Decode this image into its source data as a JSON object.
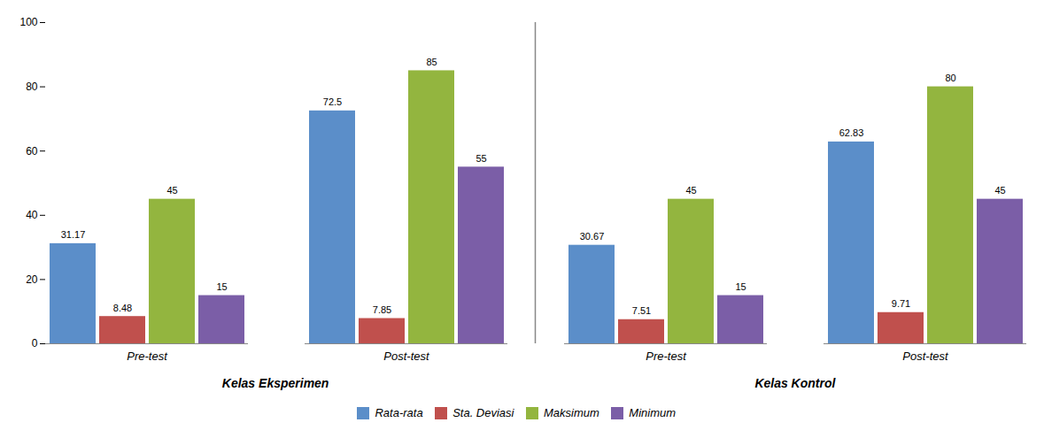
{
  "chart_data": {
    "type": "bar",
    "categories": [
      "Pre-test",
      "Post-test",
      "Pre-test",
      "Post-test"
    ],
    "category_groups": [
      "Kelas Eksperimen",
      "Kelas Eksperimen",
      "Kelas Kontrol",
      "Kelas Kontrol"
    ],
    "series": [
      {
        "name": "Rata-rata",
        "color": "#5B8EC9",
        "values": [
          31.17,
          72.5,
          30.67,
          62.83
        ]
      },
      {
        "name": "Sta. Deviasi",
        "color": "#C0504D",
        "values": [
          8.48,
          7.85,
          7.51,
          9.71
        ]
      },
      {
        "name": "Maksimum",
        "color": "#93B53F",
        "values": [
          45,
          85,
          45,
          80
        ]
      },
      {
        "name": "Minimum",
        "color": "#7B5EA7",
        "values": [
          15,
          55,
          15,
          45
        ]
      }
    ],
    "ylim": [
      0,
      100
    ],
    "yticks": [
      0,
      20,
      40,
      60,
      80,
      100
    ],
    "grid": false,
    "legend": "bottom",
    "data_labels": true
  }
}
